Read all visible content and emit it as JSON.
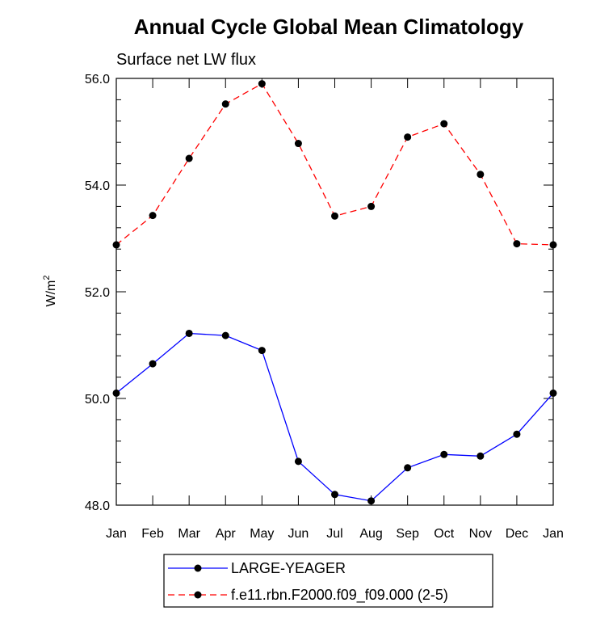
{
  "chart_data": {
    "type": "line",
    "title": "Annual Cycle Global Mean Climatology",
    "subtitle": "Surface net LW flux",
    "ylabel": "W/m",
    "ylabel_sup": "2",
    "xlabel": "",
    "categories": [
      "Jan",
      "Feb",
      "Mar",
      "Apr",
      "May",
      "Jun",
      "Jul",
      "Aug",
      "Sep",
      "Oct",
      "Nov",
      "Dec",
      "Jan"
    ],
    "ylim": [
      48.0,
      56.0
    ],
    "yticks": [
      "48.0",
      "50.0",
      "52.0",
      "54.0",
      "56.0"
    ],
    "series": [
      {
        "name": "LARGE-YEAGER",
        "color": "#0000ff",
        "dash": "solid",
        "values": [
          50.1,
          50.65,
          51.22,
          51.18,
          50.9,
          48.82,
          48.2,
          48.08,
          48.7,
          48.95,
          48.92,
          49.33,
          50.1
        ]
      },
      {
        "name": "f.e11.rbn.F2000.f09_f09.000 (2-5)",
        "color": "#ff0000",
        "dash": "dashed",
        "values": [
          52.88,
          53.43,
          54.5,
          55.52,
          55.9,
          54.78,
          53.42,
          53.6,
          54.9,
          55.15,
          54.2,
          52.9,
          52.88
        ]
      }
    ],
    "legend_position": "bottom-center"
  }
}
